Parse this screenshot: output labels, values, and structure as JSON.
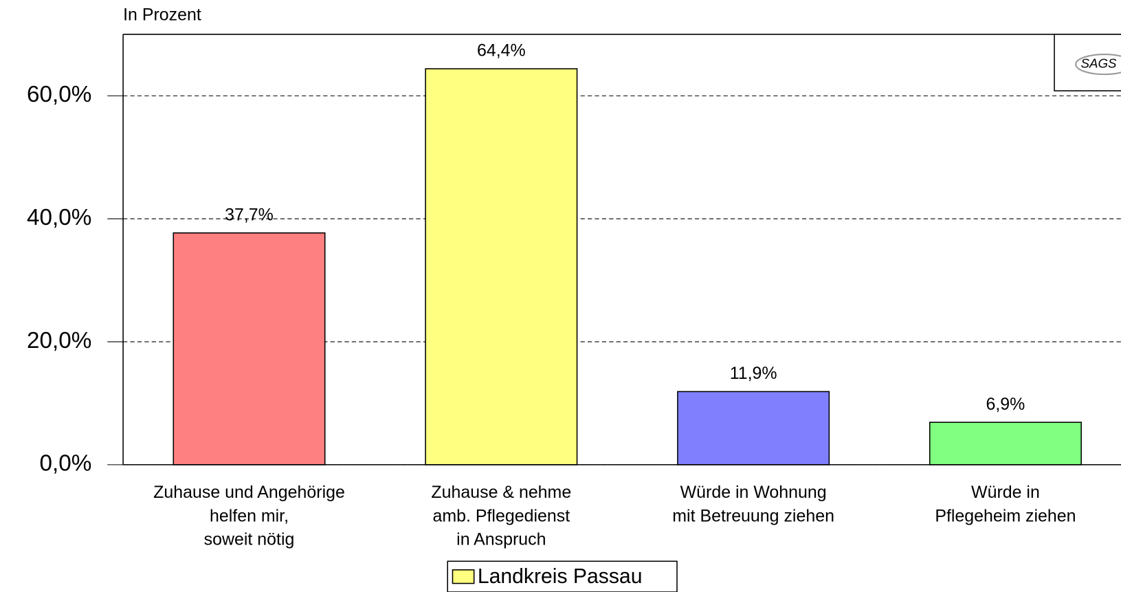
{
  "chart_data": {
    "type": "bar",
    "axis_title": "In Prozent",
    "categories": [
      [
        "Zuhause und Angehörige",
        "helfen mir,",
        "soweit nötig"
      ],
      [
        "Zuhause & nehme",
        "amb. Pflegedienst",
        "in Anspruch"
      ],
      [
        "Würde in Wohnung",
        "mit Betreuung ziehen"
      ],
      [
        "Würde in",
        "Pflegeheim ziehen"
      ]
    ],
    "series": [
      {
        "name": "Landkreis Passau",
        "color": "#ffff80",
        "values": [
          37.7,
          64.4,
          11.9,
          6.9
        ],
        "value_labels": [
          "37,7%",
          "64,4%",
          "11,9%",
          "6,9%"
        ]
      }
    ],
    "bar_colors": [
      "#ff8080",
      "#ffff80",
      "#8080ff",
      "#80ff80"
    ],
    "ylim": [
      0,
      70
    ],
    "yticks": [
      {
        "value": 0,
        "label": "0,0%"
      },
      {
        "value": 20,
        "label": "20,0%"
      },
      {
        "value": 40,
        "label": "40,0%"
      },
      {
        "value": 60,
        "label": "60,0%"
      }
    ],
    "grid": true,
    "legend": "bottom",
    "logo": "SAGS"
  }
}
